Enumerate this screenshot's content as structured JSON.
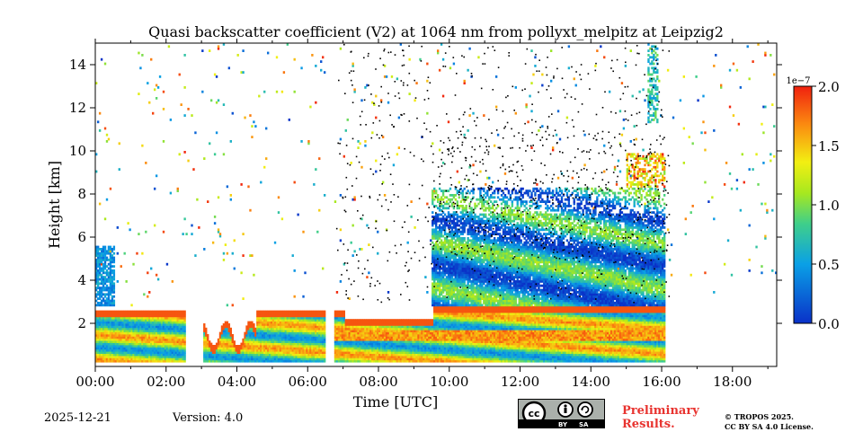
{
  "chart_data": {
    "type": "heatmap",
    "title": "Quasi backscatter coefficient (V2) at 1064 nm from pollyxt_melpitz at Leipzig2",
    "xlabel": "Time [UTC]",
    "ylabel": "Height [km]",
    "xlim": [
      0,
      19.25
    ],
    "ylim": [
      0,
      15
    ],
    "x_ticks": [
      0,
      2,
      4,
      6,
      8,
      10,
      12,
      14,
      16,
      18
    ],
    "x_tick_labels": [
      "00:00",
      "02:00",
      "04:00",
      "06:00",
      "08:00",
      "10:00",
      "12:00",
      "14:00",
      "16:00",
      "18:00"
    ],
    "y_ticks": [
      2,
      4,
      6,
      8,
      10,
      12,
      14
    ],
    "y_tick_labels": [
      "2",
      "4",
      "6",
      "8",
      "10",
      "12",
      "14"
    ],
    "colorbar": {
      "range": [
        0,
        2.0
      ],
      "scale_label": "1e−7",
      "ticks": [
        0,
        0.5,
        1.0,
        1.5,
        2.0
      ],
      "tick_labels": [
        "0.0",
        "0.5",
        "1.0",
        "1.5",
        "2.0"
      ],
      "colormap": "jet"
    },
    "features": [
      {
        "name": "boundary-layer",
        "time_range": [
          0,
          16.1
        ],
        "height_range": [
          0.2,
          2.8
        ]
      },
      {
        "name": "aerosol-layer",
        "time_range": [
          9.5,
          16.1
        ],
        "height_range": [
          2.8,
          8.2
        ]
      },
      {
        "name": "cirrus-cloud",
        "time_range": [
          15.6,
          15.9
        ],
        "height_range": [
          11.2,
          15
        ]
      },
      {
        "name": "data-gap",
        "time_range": [
          6.45,
          6.7
        ],
        "height_range": [
          0,
          15
        ]
      }
    ]
  },
  "footer": {
    "date": "2025-12-21",
    "version": "Version: 4.0",
    "license_badge": {
      "cc": "cc",
      "by": "BY",
      "sa": "SA"
    },
    "preliminary": [
      "Preliminary",
      "Results."
    ],
    "copyright": [
      "© TROPOS 2025.",
      "CC BY SA 4.0 License."
    ]
  }
}
